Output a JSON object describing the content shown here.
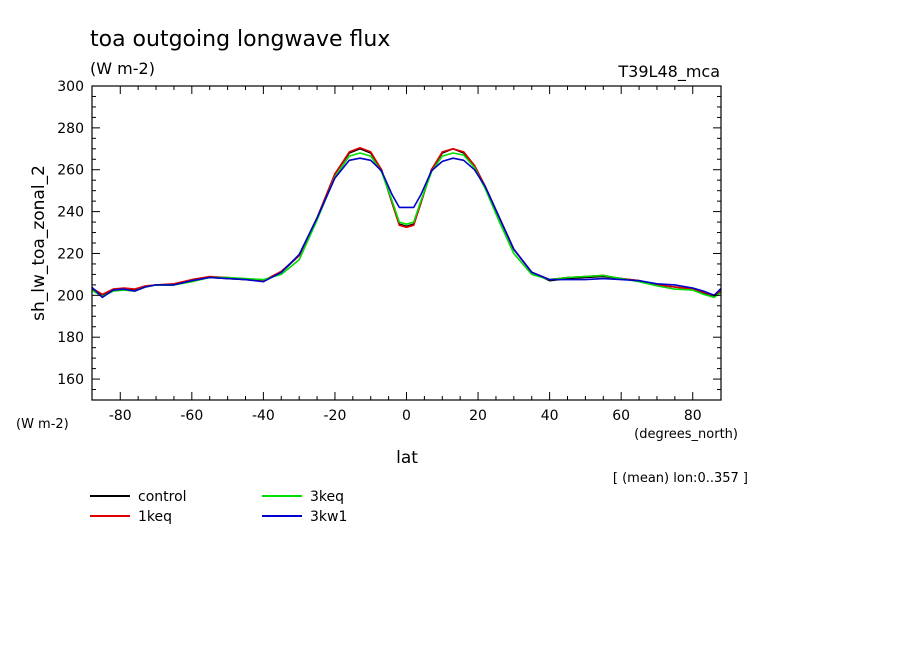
{
  "chart_data": {
    "type": "line",
    "title": "toa outgoing longwave flux",
    "subtitle": "(W m-2)",
    "model_label": "T39L48_mca",
    "xlabel": "lat",
    "xunits": "(degrees_north)",
    "ylabel": "sh_lw_toa_zonal_2",
    "yunits": "(W m-2)",
    "note": "[ (mean) lon:0..357 ]",
    "xlim": [
      -87.9,
      87.9
    ],
    "ylim": [
      150,
      300
    ],
    "xticks": [
      -80,
      -60,
      -40,
      -20,
      0,
      20,
      40,
      60,
      80
    ],
    "xtick_labels": [
      "-80",
      "-60",
      "-40",
      "-20",
      "0",
      "20",
      "40",
      "60",
      "80"
    ],
    "yticks": [
      160,
      180,
      200,
      220,
      240,
      260,
      280,
      300
    ],
    "ytick_labels": [
      "160",
      "180",
      "200",
      "220",
      "240",
      "260",
      "280",
      "300"
    ],
    "x": [
      -88,
      -85,
      -82,
      -79,
      -76,
      -73,
      -70,
      -65,
      -60,
      -55,
      -50,
      -45,
      -40,
      -35,
      -30,
      -25,
      -20,
      -16,
      -13,
      -10,
      -7,
      -4,
      -2,
      0,
      2,
      4,
      7,
      10,
      13,
      16,
      19,
      22,
      26,
      30,
      35,
      40,
      45,
      50,
      55,
      60,
      65,
      70,
      75,
      80,
      83,
      86,
      88
    ],
    "series": [
      {
        "name": "control",
        "color": "#000000",
        "values": [
          203,
          200,
          202.5,
          203,
          202.5,
          204,
          205,
          205,
          207,
          208.5,
          208,
          207.5,
          207,
          211,
          219,
          237,
          258,
          268,
          270,
          268,
          260,
          244,
          234,
          233,
          234,
          244,
          260,
          268,
          270,
          268,
          262,
          252,
          237,
          222,
          211,
          207,
          208,
          208.5,
          209,
          208,
          207,
          205,
          204,
          203,
          201,
          199.5,
          202
        ]
      },
      {
        "name": "1keq",
        "color": "#dd0000",
        "values": [
          203.5,
          200.5,
          203,
          203.5,
          203,
          204.5,
          205,
          205.5,
          207.5,
          209,
          208.5,
          207.5,
          207,
          211.5,
          219,
          237,
          258,
          268.5,
          270.5,
          268.5,
          260,
          244,
          233.5,
          232.5,
          233.5,
          244,
          260,
          268.5,
          270,
          268.5,
          262,
          252,
          237,
          222,
          211,
          207.5,
          208.5,
          209,
          209.5,
          208,
          207,
          205,
          204,
          203,
          201.5,
          200,
          202.5
        ]
      },
      {
        "name": "3keq",
        "color": "#00dd00",
        "values": [
          202.5,
          199.5,
          202,
          202.5,
          202,
          204,
          205,
          205,
          206.5,
          208.5,
          208.5,
          208,
          207.5,
          210,
          217,
          236,
          256.5,
          266.5,
          268,
          266.5,
          259,
          245,
          235,
          234,
          235,
          245,
          259,
          266.5,
          268,
          267,
          261,
          251,
          235,
          220,
          210,
          207.5,
          208.5,
          209,
          209.5,
          208,
          206.5,
          204.5,
          203,
          202.5,
          200.5,
          199,
          201.5
        ]
      },
      {
        "name": "3kw1",
        "color": "#0000cc",
        "values": [
          204,
          199,
          202.5,
          203,
          202,
          204,
          205,
          205,
          207,
          208.5,
          208,
          207.5,
          206.5,
          211,
          219.5,
          237,
          256,
          264.5,
          265.5,
          264.5,
          259.5,
          248,
          242,
          242,
          242,
          248,
          259.5,
          264,
          265.5,
          264.5,
          260,
          252,
          237,
          222,
          211,
          207.5,
          207.5,
          207.5,
          208,
          207.5,
          207,
          205.5,
          205,
          203.5,
          202,
          200,
          203.5
        ]
      }
    ],
    "legend": [
      "control",
      "1keq",
      "3keq",
      "3kw1"
    ],
    "legend_position": "bottom-left"
  }
}
